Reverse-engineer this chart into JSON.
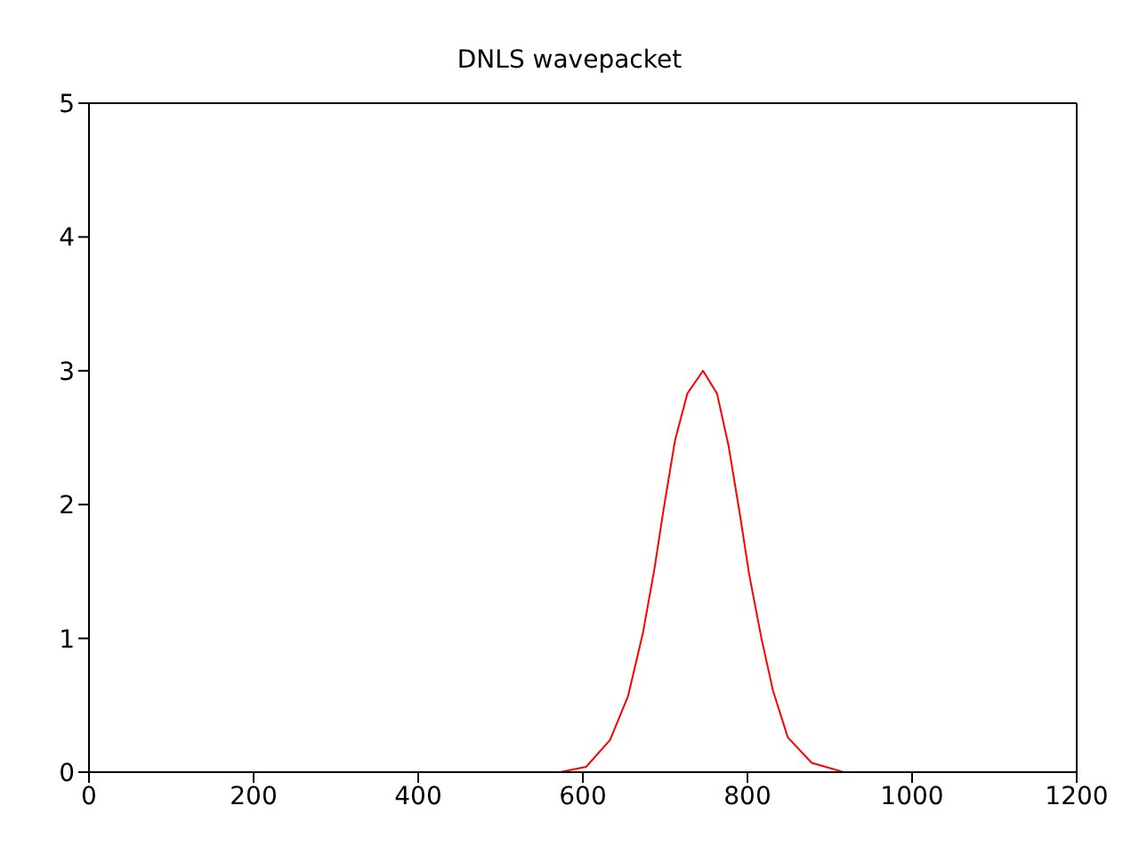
{
  "chart_data": {
    "type": "line",
    "title": "DNLS wavepacket",
    "series": [
      {
        "color": "#ff0000",
        "x": [
          572,
          604,
          633,
          655,
          673,
          687,
          698,
          712,
          727,
          746,
          763,
          777,
          791,
          802,
          817,
          831,
          849,
          878,
          917
        ],
        "values": [
          0,
          0.04,
          0.24,
          0.57,
          1.04,
          1.52,
          1.96,
          2.48,
          2.83,
          3.0,
          2.83,
          2.44,
          1.92,
          1.48,
          1.0,
          0.61,
          0.26,
          0.07,
          0
        ]
      }
    ],
    "xlim": [
      0,
      1200
    ],
    "xticks": [
      0,
      200,
      400,
      600,
      800,
      1000,
      1200
    ],
    "ylim": [
      0,
      5
    ],
    "yticks": [
      0,
      1,
      2,
      3,
      4,
      5
    ],
    "grid": false,
    "legend": false,
    "marker": "none",
    "line_style": "solid"
  }
}
